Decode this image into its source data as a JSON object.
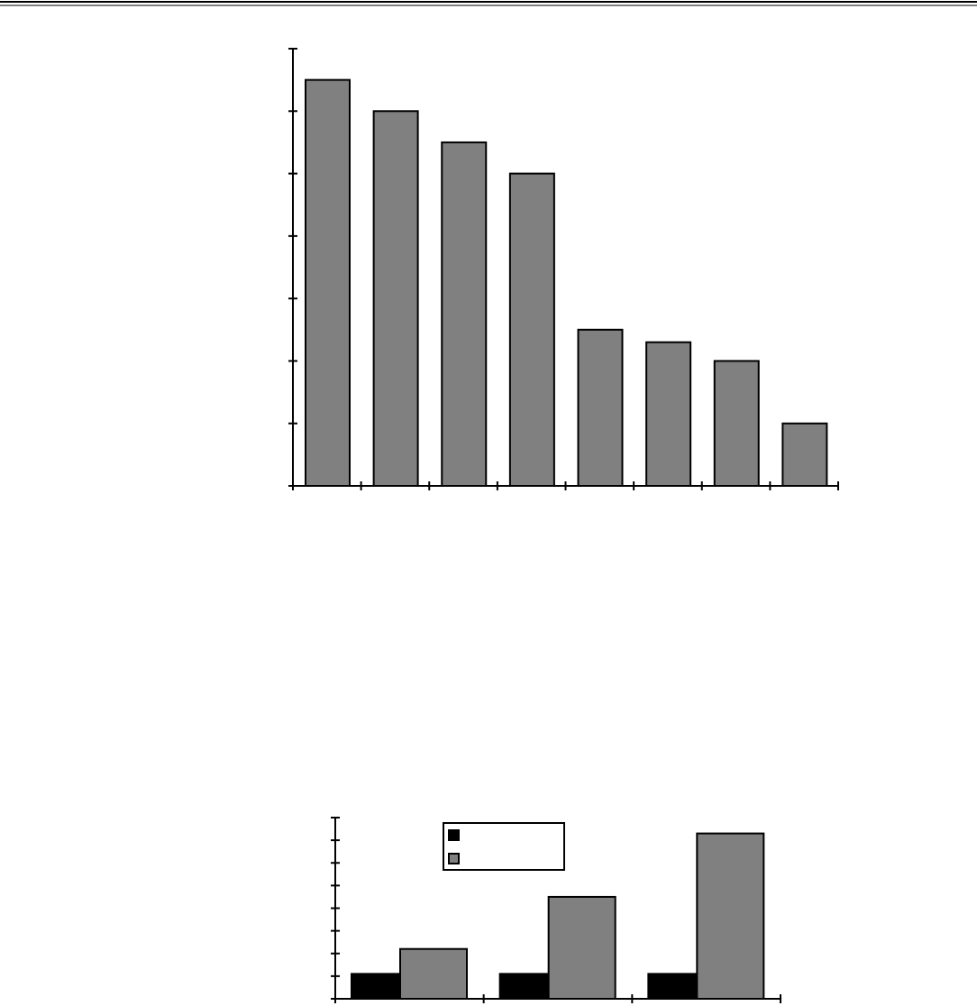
{
  "colors": {
    "bar_gray": "#808080",
    "bar_black": "#000000",
    "axis": "#000000"
  },
  "chart_data": [
    {
      "type": "bar",
      "title": "",
      "xlabel": "",
      "ylabel": "",
      "categories": [
        "",
        "",
        "",
        "",
        "",
        "",
        "",
        ""
      ],
      "values": [
        6.5,
        6.0,
        5.5,
        5.0,
        2.5,
        2.3,
        2.0,
        1.0
      ],
      "ylim": [
        0,
        7
      ],
      "y_tick_step": 1,
      "grid": false
    },
    {
      "type": "bar",
      "title": "",
      "xlabel": "",
      "ylabel": "",
      "categories": [
        "",
        "",
        ""
      ],
      "series": [
        {
          "color": "#000000",
          "values": [
            1.1,
            1.1,
            1.1
          ]
        },
        {
          "color": "#808080",
          "values": [
            2.2,
            4.5,
            7.3
          ]
        }
      ],
      "ylim": [
        0,
        8
      ],
      "y_tick_step": 1,
      "legend": "top-center",
      "grid": false
    }
  ]
}
